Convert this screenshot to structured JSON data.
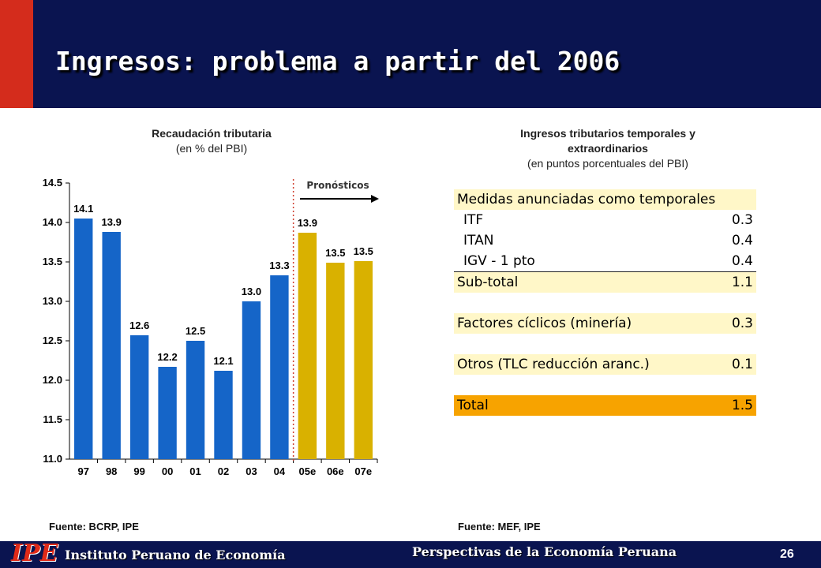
{
  "slide": {
    "title": "Ingresos: problema a partir del 2006",
    "page_number": "26",
    "footer_logo": "IPE",
    "footer_institution": "Instituto Peruano de Economía",
    "footer_subtitle": "Perspectivas de la Economía Peruana"
  },
  "left_chart": {
    "title": "Recaudación tributaria",
    "subtitle": "(en % del PBI)",
    "source": "Fuente: BCRP, IPE",
    "forecast_label": "Pronósticos"
  },
  "right_table": {
    "title_line1": "Ingresos tributarios temporales y",
    "title_line2": "extraordinarios",
    "subtitle": "(en puntos porcentuales del PBI)",
    "source": "Fuente: MEF, IPE",
    "header": "Medidas anunciadas como temporales",
    "rows": [
      {
        "label": "ITF",
        "value": "0.3"
      },
      {
        "label": "ITAN",
        "value": "0.4"
      },
      {
        "label": "IGV - 1 pto",
        "value": "0.4"
      }
    ],
    "subtotal": {
      "label": "Sub-total",
      "value": "1.1"
    },
    "cyclical": {
      "label": "Factores cíclicos (minería)",
      "value": "0.3"
    },
    "others": {
      "label": "Otros (TLC reducción aranc.)",
      "value": "0.1"
    },
    "total": {
      "label": "Total",
      "value": "1.5"
    }
  },
  "chart_data": {
    "type": "bar",
    "categories": [
      "97",
      "98",
      "99",
      "00",
      "01",
      "02",
      "03",
      "04",
      "05e",
      "06e",
      "07e"
    ],
    "values": [
      14.05,
      13.88,
      12.57,
      12.17,
      12.5,
      12.12,
      13.0,
      13.33,
      13.87,
      13.49,
      13.51
    ],
    "data_labels": [
      "14.1",
      "13.9",
      "12.6",
      "12.2",
      "12.5",
      "12.1",
      "13.0",
      "13.3",
      "13.9",
      "13.5",
      "13.5"
    ],
    "ylim": [
      11.0,
      14.5
    ],
    "yticks": [
      "11.0",
      "11.5",
      "12.0",
      "12.5",
      "13.0",
      "13.5",
      "14.0",
      "14.5"
    ],
    "title": "Recaudación tributaria",
    "xlabel": "",
    "ylabel": "",
    "forecast_start_index": 8,
    "colors": {
      "actual": "#1565c8",
      "forecast": "#d9b100",
      "divider": "#d04030"
    }
  }
}
